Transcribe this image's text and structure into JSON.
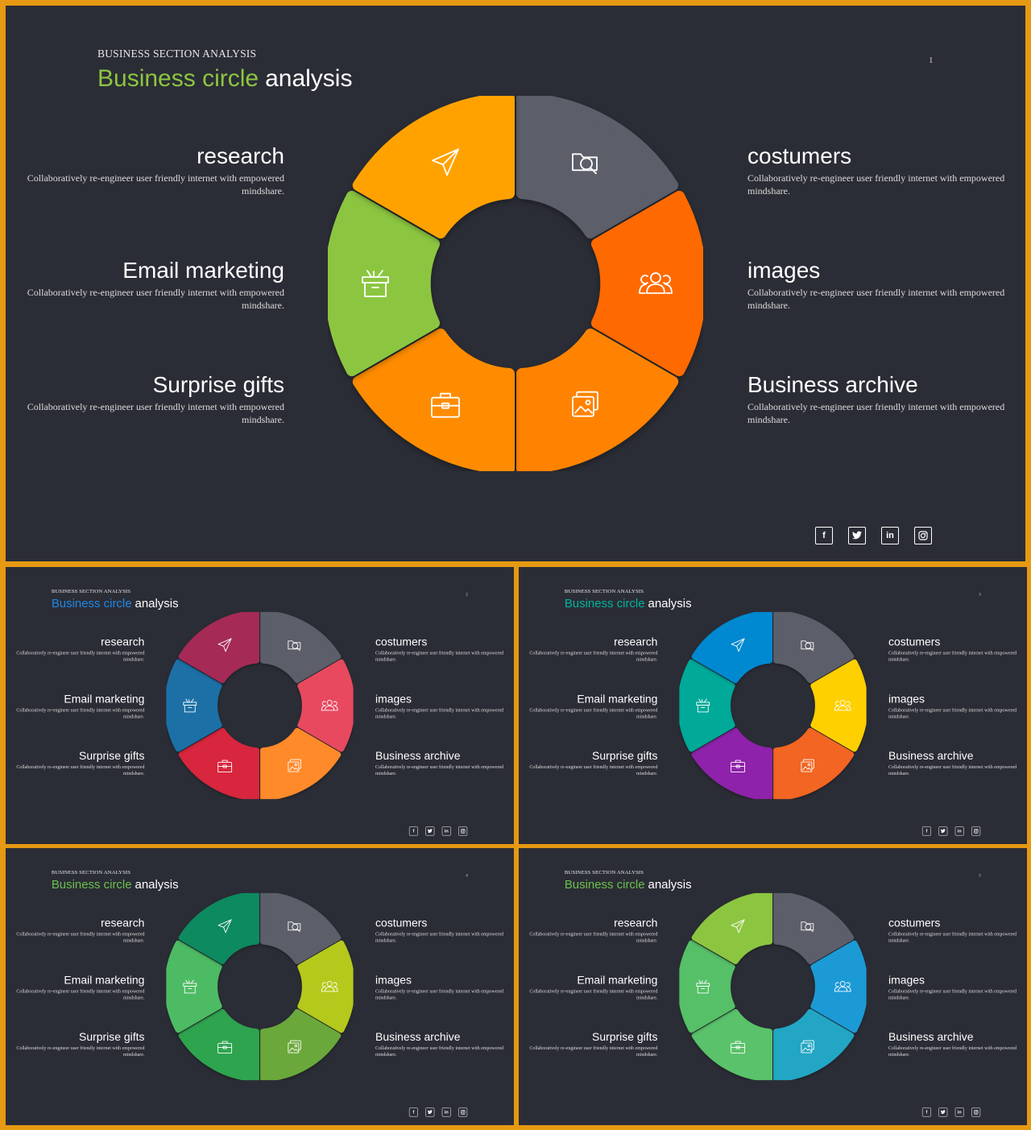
{
  "eyebrow": "BUSINESS SECTION ANALYSIS",
  "title_accent": "Business circle",
  "title_rest": "analysis",
  "items": [
    {
      "label": "research",
      "description": "Collaboratively re-engineer user friendly internet with empowered mindshare.",
      "icon": "folder-search-icon"
    },
    {
      "label": "costumers",
      "description": "Collaboratively re-engineer user friendly internet with empowered mindshare.",
      "icon": "users-icon"
    },
    {
      "label": "images",
      "description": "Collaboratively re-engineer user friendly internet with empowered mindshare.",
      "icon": "images-icon"
    },
    {
      "label": "Business archive",
      "description": "Collaboratively re-engineer user friendly internet with empowered mindshare.",
      "icon": "briefcase-icon"
    },
    {
      "label": "Surprise gifts",
      "description": "Collaboratively re-engineer user friendly internet with empowered mindshare.",
      "icon": "gift-box-icon"
    },
    {
      "label": "Email marketing",
      "description": "Collaboratively re-engineer user friendly internet with empowered mindshare.",
      "icon": "paper-plane-icon"
    }
  ],
  "socials": [
    {
      "name": "facebook-icon",
      "glyph": "f"
    },
    {
      "name": "twitter-icon",
      "glyph": ""
    },
    {
      "name": "linkedin-icon",
      "glyph": "in"
    },
    {
      "name": "instagram-icon",
      "glyph": ""
    }
  ],
  "slides": [
    {
      "page": "1",
      "accent": "#8cc63f",
      "colors": [
        "#5b5e6b",
        "#ff6a00",
        "#ff8300",
        "#ff8c00",
        "#8cc63f",
        "#ffa200"
      ]
    },
    {
      "page": "2",
      "accent": "#1e88e5",
      "colors": [
        "#5b5e6b",
        "#e84a5f",
        "#ff8a2b",
        "#d7263d",
        "#1f6fa6",
        "#a52a55"
      ]
    },
    {
      "page": "3",
      "accent": "#00b39b",
      "colors": [
        "#5b5e6b",
        "#ffd000",
        "#f26522",
        "#8e24aa",
        "#00a998",
        "#0288d1"
      ]
    },
    {
      "page": "4",
      "accent": "#6cc04a",
      "colors": [
        "#5b5e6b",
        "#b5c91a",
        "#6aa83b",
        "#2ea44f",
        "#4dbb63",
        "#0e8a5f"
      ]
    },
    {
      "page": "5",
      "accent": "#6cc04a",
      "colors": [
        "#5b5e6b",
        "#1c9ad6",
        "#21a6c4",
        "#5ac26a",
        "#55c068",
        "#8cc63f"
      ]
    }
  ]
}
